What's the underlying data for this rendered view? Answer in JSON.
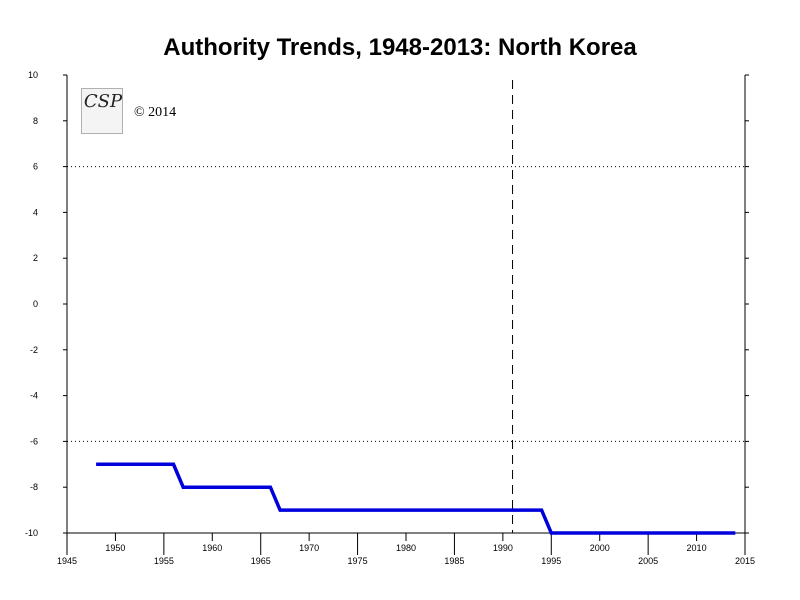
{
  "chart_data": {
    "type": "line",
    "title": "Authority Trends, 1948-2013: North Korea",
    "xlabel": "",
    "ylabel": "",
    "xlim": [
      1945,
      2015
    ],
    "ylim": [
      -10,
      10
    ],
    "x_ticks_major": [
      1945,
      1955,
      1965,
      1975,
      1985,
      1995,
      2005,
      2015
    ],
    "x_ticks_minor_labeled": [
      1950,
      1960,
      1970,
      1980,
      1990,
      2000,
      2010
    ],
    "y_ticks": [
      10,
      8,
      6,
      4,
      2,
      0,
      -2,
      -4,
      -6,
      -8,
      -10
    ],
    "reference_lines": [
      {
        "axis": "y",
        "value": 6,
        "style": "dotted"
      },
      {
        "axis": "y",
        "value": -6,
        "style": "dotted"
      },
      {
        "axis": "x",
        "value": 1991,
        "style": "dashed"
      }
    ],
    "series": [
      {
        "color": "#0000dd",
        "points": [
          [
            1948,
            -7
          ],
          [
            1956,
            -7
          ],
          [
            1957,
            -8
          ],
          [
            1966,
            -8
          ],
          [
            1967,
            -9
          ],
          [
            1994,
            -9
          ],
          [
            1995,
            -10
          ],
          [
            2014,
            -10
          ]
        ]
      }
    ],
    "grid": false
  },
  "logo": {
    "text": "CSP",
    "copyright": "© 2014"
  }
}
